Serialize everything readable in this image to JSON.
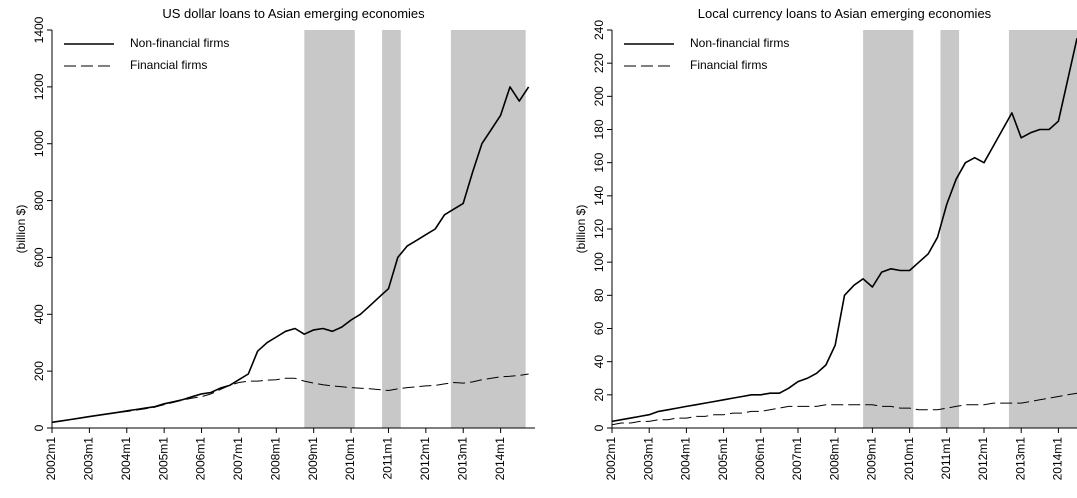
{
  "chart_data": [
    {
      "type": "line",
      "title": "US dollar loans to Asian emerging economies",
      "y_label": "(billion $)",
      "x": [
        2002,
        2002.25,
        2002.5,
        2002.75,
        2003,
        2003.25,
        2003.5,
        2003.75,
        2004,
        2004.25,
        2004.5,
        2004.75,
        2005,
        2005.25,
        2005.5,
        2005.75,
        2006,
        2006.25,
        2006.5,
        2006.75,
        2007,
        2007.25,
        2007.5,
        2007.75,
        2008,
        2008.25,
        2008.5,
        2008.75,
        2009,
        2009.25,
        2009.5,
        2009.75,
        2010,
        2010.25,
        2010.5,
        2010.75,
        2011,
        2011.25,
        2011.5,
        2011.75,
        2012,
        2012.25,
        2012.5,
        2012.75,
        2013,
        2013.25,
        2013.5,
        2013.75,
        2014,
        2014.25,
        2014.5,
        2014.75
      ],
      "series": [
        {
          "name": "Non-financial firms",
          "color": "#000000",
          "style": "solid",
          "values": [
            20,
            25,
            30,
            35,
            40,
            45,
            50,
            55,
            60,
            65,
            70,
            75,
            85,
            92,
            100,
            110,
            120,
            125,
            140,
            150,
            170,
            190,
            270,
            300,
            320,
            340,
            350,
            330,
            345,
            350,
            340,
            355,
            380,
            400,
            430,
            460,
            490,
            600,
            640,
            660,
            680,
            700,
            750,
            770,
            790,
            900,
            1000,
            1050,
            1100,
            1200,
            1150,
            1200
          ]
        },
        {
          "name": "Financial firms",
          "color": "#000000",
          "style": "dashed",
          "values": [
            20,
            25,
            30,
            35,
            40,
            45,
            50,
            55,
            58,
            63,
            68,
            73,
            82,
            90,
            98,
            105,
            110,
            120,
            135,
            150,
            160,
            165,
            165,
            168,
            170,
            175,
            175,
            165,
            158,
            152,
            148,
            145,
            142,
            140,
            138,
            135,
            132,
            138,
            142,
            145,
            148,
            150,
            155,
            160,
            158,
            162,
            170,
            175,
            180,
            182,
            185,
            190
          ]
        }
      ],
      "shaded": [
        [
          2008.75,
          2010.1
        ],
        [
          2010.83,
          2011.33
        ],
        [
          2012.67,
          2014.67
        ]
      ],
      "xlim": [
        2002,
        2014.92
      ],
      "ylim": [
        0,
        1400
      ],
      "yticks": [
        0,
        200,
        400,
        600,
        800,
        1000,
        1200,
        1400
      ],
      "xticks": [
        {
          "value": 2002,
          "label": "2002m1"
        },
        {
          "value": 2003,
          "label": "2003m1"
        },
        {
          "value": 2004,
          "label": "2004m1"
        },
        {
          "value": 2005,
          "label": "2005m1"
        },
        {
          "value": 2006,
          "label": "2006m1"
        },
        {
          "value": 2007,
          "label": "2007m1"
        },
        {
          "value": 2008,
          "label": "2008m1"
        },
        {
          "value": 2009,
          "label": "2009m1"
        },
        {
          "value": 2010,
          "label": "2010m1"
        },
        {
          "value": 2011,
          "label": "2011m1"
        },
        {
          "value": 2012,
          "label": "2012m1"
        },
        {
          "value": 2013,
          "label": "2013m1"
        },
        {
          "value": 2014,
          "label": "2014m1"
        }
      ],
      "legend": "top-left"
    },
    {
      "type": "line",
      "title": "Local currency loans to Asian emerging economies",
      "y_label": "(billion $)",
      "x": [
        2002,
        2002.25,
        2002.5,
        2002.75,
        2003,
        2003.25,
        2003.5,
        2003.75,
        2004,
        2004.25,
        2004.5,
        2004.75,
        2005,
        2005.25,
        2005.5,
        2005.75,
        2006,
        2006.25,
        2006.5,
        2006.75,
        2007,
        2007.25,
        2007.5,
        2007.75,
        2008,
        2008.25,
        2008.5,
        2008.75,
        2009,
        2009.25,
        2009.5,
        2009.75,
        2010,
        2010.25,
        2010.5,
        2010.75,
        2011,
        2011.25,
        2011.5,
        2011.75,
        2012,
        2012.25,
        2012.5,
        2012.75,
        2013,
        2013.25,
        2013.5,
        2013.75,
        2014,
        2014.25,
        2014.5
      ],
      "series": [
        {
          "name": "Non-financial firms",
          "color": "#000000",
          "style": "solid",
          "values": [
            4,
            5,
            6,
            7,
            8,
            10,
            11,
            12,
            13,
            14,
            15,
            16,
            17,
            18,
            19,
            20,
            20,
            21,
            21,
            24,
            28,
            30,
            33,
            38,
            50,
            80,
            86,
            90,
            85,
            94,
            96,
            95,
            95,
            100,
            105,
            115,
            135,
            150,
            160,
            163,
            160,
            170,
            180,
            190,
            175,
            178,
            180,
            180,
            185,
            210,
            235
          ]
        },
        {
          "name": "Financial firms",
          "color": "#000000",
          "style": "dashed",
          "values": [
            2,
            3,
            3,
            4,
            4,
            5,
            5,
            6,
            6,
            7,
            7,
            8,
            8,
            9,
            9,
            10,
            10,
            11,
            12,
            13,
            13,
            13,
            13,
            14,
            14,
            14,
            14,
            14,
            14,
            13,
            13,
            12,
            12,
            11,
            11,
            11,
            12,
            13,
            14,
            14,
            14,
            15,
            15,
            15,
            15,
            16,
            17,
            18,
            19,
            20,
            21
          ]
        }
      ],
      "shaded": [
        [
          2008.75,
          2010.1
        ],
        [
          2010.83,
          2011.33
        ],
        [
          2012.67,
          2014.5
        ]
      ],
      "xlim": [
        2002,
        2014.5
      ],
      "ylim": [
        0,
        240
      ],
      "yticks": [
        0,
        20,
        40,
        60,
        80,
        100,
        120,
        140,
        160,
        180,
        200,
        220,
        240
      ],
      "xticks": [
        {
          "value": 2002,
          "label": "2002m1"
        },
        {
          "value": 2003,
          "label": "2003m1"
        },
        {
          "value": 2004,
          "label": "2004m1"
        },
        {
          "value": 2005,
          "label": "2005m1"
        },
        {
          "value": 2006,
          "label": "2006m1"
        },
        {
          "value": 2007,
          "label": "2007m1"
        },
        {
          "value": 2008,
          "label": "2008m1"
        },
        {
          "value": 2009,
          "label": "2009m1"
        },
        {
          "value": 2010,
          "label": "2010m1"
        },
        {
          "value": 2011,
          "label": "2011m1"
        },
        {
          "value": 2012,
          "label": "2012m1"
        },
        {
          "value": 2013,
          "label": "2013m1"
        },
        {
          "value": 2014,
          "label": "2014m1"
        }
      ],
      "legend": "top-left"
    }
  ]
}
